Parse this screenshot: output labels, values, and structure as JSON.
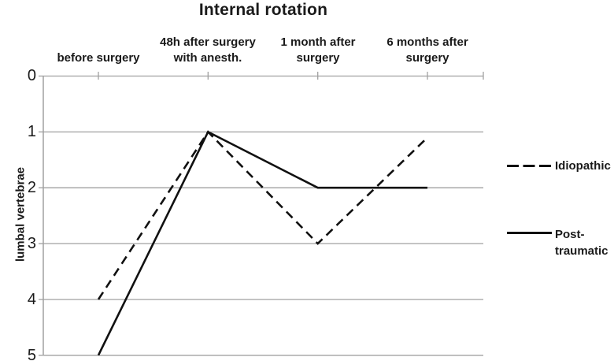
{
  "title": "Internal rotation",
  "y_axis": {
    "label": "lumbal vertebrae",
    "ticks": [
      "0",
      "1",
      "2",
      "3",
      "4",
      "5"
    ]
  },
  "x_axis": {
    "categories_display": [
      [
        "before surgery"
      ],
      [
        "48h after surgery",
        "with anesth."
      ],
      [
        "1 month after",
        "surgery"
      ],
      [
        "6 months after",
        "surgery"
      ]
    ]
  },
  "legend": [
    {
      "label": "Idiopathic",
      "style": "dashed"
    },
    {
      "label": "Post-traumatic",
      "label_lines": [
        "Post-",
        "traumatic"
      ],
      "style": "solid"
    }
  ],
  "colors": {
    "line": "#111111",
    "grid": "#a0a0a0",
    "text": "#1a1a1a",
    "background": "#ffffff"
  },
  "chart_data": {
    "type": "line",
    "title": "Internal rotation",
    "xlabel": "",
    "ylabel": "lumbal vertebrae",
    "categories": [
      "before surgery",
      "48h after surgery with anesth.",
      "1 month after surgery",
      "6 months after surgery"
    ],
    "series": [
      {
        "name": "Idiopathic",
        "style": "dashed",
        "values": [
          4,
          1,
          3,
          1.1
        ]
      },
      {
        "name": "Post-traumatic",
        "style": "solid",
        "values": [
          5,
          1,
          2,
          2
        ]
      }
    ],
    "ylim": [
      0,
      5
    ],
    "y_inverted": true,
    "y_tick_step": 1,
    "grid": true,
    "x_axis_position": "top",
    "legend_position": "right"
  }
}
